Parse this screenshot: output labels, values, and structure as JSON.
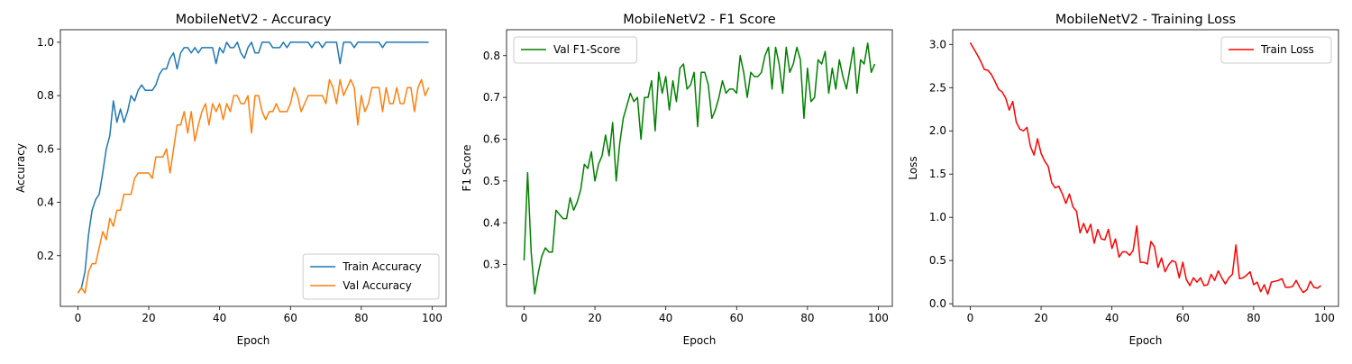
{
  "chart_data": [
    {
      "type": "line",
      "title": "MobileNetV2 - Accuracy",
      "xlabel": "Epoch",
      "ylabel": "Accuracy",
      "legend": "lower right",
      "x": [
        0,
        1,
        2,
        3,
        4,
        5,
        6,
        7,
        8,
        9,
        10,
        11,
        12,
        13,
        14,
        15,
        16,
        17,
        18,
        19,
        20,
        21,
        22,
        23,
        24,
        25,
        26,
        27,
        28,
        29,
        30,
        31,
        32,
        33,
        34,
        35,
        36,
        37,
        38,
        39,
        40,
        41,
        42,
        43,
        44,
        45,
        46,
        47,
        48,
        49,
        50,
        51,
        52,
        53,
        54,
        55,
        56,
        57,
        58,
        59,
        60,
        61,
        62,
        63,
        64,
        65,
        66,
        67,
        68,
        69,
        70,
        71,
        72,
        73,
        74,
        75,
        76,
        77,
        78,
        79,
        80,
        81,
        82,
        83,
        84,
        85,
        86,
        87,
        88,
        89,
        90,
        91,
        92,
        93,
        94,
        95,
        96,
        97,
        98,
        99
      ],
      "series": [
        {
          "name": "Train Accuracy",
          "color": "#1f77b4",
          "values": [
            0.06,
            0.08,
            0.14,
            0.28,
            0.37,
            0.41,
            0.43,
            0.51,
            0.6,
            0.65,
            0.78,
            0.7,
            0.75,
            0.7,
            0.74,
            0.8,
            0.78,
            0.82,
            0.84,
            0.82,
            0.82,
            0.82,
            0.84,
            0.88,
            0.9,
            0.9,
            0.94,
            0.96,
            0.9,
            0.96,
            0.98,
            0.98,
            0.96,
            0.98,
            0.96,
            0.98,
            0.98,
            0.98,
            0.98,
            0.92,
            0.98,
            0.96,
            1.0,
            0.98,
            0.98,
            1.0,
            0.96,
            0.94,
            0.98,
            1.0,
            0.96,
            0.96,
            1.0,
            1.0,
            1.0,
            0.98,
            0.98,
            0.98,
            1.0,
            0.98,
            1.0,
            1.0,
            1.0,
            1.0,
            1.0,
            1.0,
            0.98,
            1.0,
            1.0,
            0.98,
            1.0,
            1.0,
            1.0,
            1.0,
            0.92,
            1.0,
            1.0,
            1.0,
            0.98,
            1.0,
            1.0,
            1.0,
            1.0,
            1.0,
            1.0,
            1.0,
            0.98,
            1.0,
            1.0,
            1.0,
            1.0,
            1.0,
            1.0,
            1.0,
            1.0,
            1.0,
            1.0,
            1.0,
            1.0,
            1.0
          ]
        },
        {
          "name": "Val Accuracy",
          "color": "#ff7f0e",
          "values": [
            0.06,
            0.08,
            0.06,
            0.14,
            0.17,
            0.17,
            0.23,
            0.29,
            0.26,
            0.34,
            0.31,
            0.37,
            0.37,
            0.43,
            0.43,
            0.43,
            0.49,
            0.51,
            0.51,
            0.51,
            0.51,
            0.49,
            0.57,
            0.57,
            0.57,
            0.6,
            0.51,
            0.6,
            0.69,
            0.69,
            0.74,
            0.66,
            0.74,
            0.63,
            0.69,
            0.74,
            0.77,
            0.69,
            0.77,
            0.74,
            0.77,
            0.71,
            0.77,
            0.74,
            0.8,
            0.8,
            0.77,
            0.77,
            0.8,
            0.66,
            0.8,
            0.8,
            0.74,
            0.71,
            0.74,
            0.74,
            0.77,
            0.74,
            0.74,
            0.74,
            0.77,
            0.83,
            0.8,
            0.74,
            0.77,
            0.8,
            0.8,
            0.8,
            0.8,
            0.8,
            0.77,
            0.86,
            0.83,
            0.77,
            0.86,
            0.8,
            0.83,
            0.86,
            0.83,
            0.69,
            0.8,
            0.74,
            0.77,
            0.83,
            0.83,
            0.83,
            0.74,
            0.83,
            0.77,
            0.77,
            0.83,
            0.77,
            0.77,
            0.83,
            0.83,
            0.74,
            0.83,
            0.86,
            0.8,
            0.83
          ]
        }
      ],
      "xlim": [
        -4.95,
        103.95
      ],
      "xticks": [
        0,
        20,
        40,
        60,
        80,
        100
      ],
      "ylim": [
        0.01,
        1.047
      ],
      "yticks": [
        0.2,
        0.4,
        0.6,
        0.8,
        {
          "value": 1,
          "label": "1.0"
        }
      ]
    },
    {
      "type": "line",
      "title": "MobileNetV2 - F1 Score",
      "xlabel": "Epoch",
      "ylabel": "F1 Score",
      "legend": "upper left",
      "x": [
        0,
        1,
        2,
        3,
        4,
        5,
        6,
        7,
        8,
        9,
        10,
        11,
        12,
        13,
        14,
        15,
        16,
        17,
        18,
        19,
        20,
        21,
        22,
        23,
        24,
        25,
        26,
        27,
        28,
        29,
        30,
        31,
        32,
        33,
        34,
        35,
        36,
        37,
        38,
        39,
        40,
        41,
        42,
        43,
        44,
        45,
        46,
        47,
        48,
        49,
        50,
        51,
        52,
        53,
        54,
        55,
        56,
        57,
        58,
        59,
        60,
        61,
        62,
        63,
        64,
        65,
        66,
        67,
        68,
        69,
        70,
        71,
        72,
        73,
        74,
        75,
        76,
        77,
        78,
        79,
        80,
        81,
        82,
        83,
        84,
        85,
        86,
        87,
        88,
        89,
        90,
        91,
        92,
        93,
        94,
        95,
        96,
        97,
        98,
        99
      ],
      "series": [
        {
          "name": "Val F1-Score",
          "color": "#008000",
          "values": [
            0.31,
            0.52,
            0.33,
            0.23,
            0.28,
            0.32,
            0.34,
            0.33,
            0.33,
            0.43,
            0.42,
            0.41,
            0.41,
            0.46,
            0.43,
            0.45,
            0.48,
            0.54,
            0.53,
            0.57,
            0.5,
            0.54,
            0.56,
            0.61,
            0.56,
            0.64,
            0.5,
            0.59,
            0.65,
            0.68,
            0.71,
            0.69,
            0.7,
            0.6,
            0.7,
            0.7,
            0.74,
            0.62,
            0.76,
            0.71,
            0.75,
            0.67,
            0.74,
            0.69,
            0.77,
            0.78,
            0.72,
            0.73,
            0.76,
            0.63,
            0.76,
            0.76,
            0.73,
            0.65,
            0.67,
            0.7,
            0.74,
            0.71,
            0.72,
            0.72,
            0.71,
            0.8,
            0.76,
            0.7,
            0.76,
            0.75,
            0.75,
            0.76,
            0.8,
            0.82,
            0.72,
            0.82,
            0.78,
            0.71,
            0.82,
            0.76,
            0.78,
            0.82,
            0.79,
            0.65,
            0.77,
            0.69,
            0.7,
            0.79,
            0.78,
            0.81,
            0.71,
            0.77,
            0.72,
            0.79,
            0.75,
            0.72,
            0.77,
            0.82,
            0.71,
            0.79,
            0.78,
            0.83,
            0.76,
            0.78
          ]
        }
      ],
      "xlim": [
        -4.95,
        103.95
      ],
      "xticks": [
        0,
        20,
        40,
        60,
        80,
        100
      ],
      "ylim": [
        0.2,
        0.862
      ],
      "yticks": [
        0.3,
        0.4,
        0.5,
        0.6,
        0.7,
        0.8
      ]
    },
    {
      "type": "line",
      "title": "MobileNetV2 - Training Loss",
      "xlabel": "Epoch",
      "ylabel": "Loss",
      "legend": "upper right",
      "x": [
        0,
        1,
        2,
        3,
        4,
        5,
        6,
        7,
        8,
        9,
        10,
        11,
        12,
        13,
        14,
        15,
        16,
        17,
        18,
        19,
        20,
        21,
        22,
        23,
        24,
        25,
        26,
        27,
        28,
        29,
        30,
        31,
        32,
        33,
        34,
        35,
        36,
        37,
        38,
        39,
        40,
        41,
        42,
        43,
        44,
        45,
        46,
        47,
        48,
        49,
        50,
        51,
        52,
        53,
        54,
        55,
        56,
        57,
        58,
        59,
        60,
        61,
        62,
        63,
        64,
        65,
        66,
        67,
        68,
        69,
        70,
        71,
        72,
        73,
        74,
        75,
        76,
        77,
        78,
        79,
        80,
        81,
        82,
        83,
        84,
        85,
        86,
        87,
        88,
        89,
        90,
        91,
        92,
        93,
        94,
        95,
        96,
        97,
        98,
        99
      ],
      "series": [
        {
          "name": "Train Loss",
          "color": "#ff0000",
          "values": [
            3.02,
            2.95,
            2.88,
            2.8,
            2.71,
            2.7,
            2.65,
            2.57,
            2.48,
            2.45,
            2.38,
            2.24,
            2.34,
            2.1,
            2.02,
            2.0,
            2.04,
            1.82,
            1.72,
            1.91,
            1.74,
            1.65,
            1.59,
            1.4,
            1.34,
            1.36,
            1.27,
            1.16,
            1.27,
            1.12,
            1.07,
            0.82,
            0.93,
            0.82,
            0.92,
            0.7,
            0.86,
            0.75,
            0.74,
            0.86,
            0.64,
            0.75,
            0.54,
            0.6,
            0.6,
            0.56,
            0.62,
            0.9,
            0.48,
            0.48,
            0.46,
            0.72,
            0.66,
            0.42,
            0.53,
            0.37,
            0.45,
            0.5,
            0.48,
            0.3,
            0.48,
            0.28,
            0.21,
            0.3,
            0.25,
            0.3,
            0.21,
            0.22,
            0.34,
            0.27,
            0.38,
            0.3,
            0.23,
            0.3,
            0.34,
            0.68,
            0.29,
            0.3,
            0.33,
            0.37,
            0.22,
            0.25,
            0.14,
            0.22,
            0.11,
            0.25,
            0.26,
            0.27,
            0.29,
            0.19,
            0.19,
            0.2,
            0.27,
            0.19,
            0.13,
            0.16,
            0.26,
            0.19,
            0.18,
            0.21
          ]
        }
      ],
      "xlim": [
        -4.95,
        103.95
      ],
      "xticks": [
        0,
        20,
        40,
        60,
        80,
        100
      ],
      "ylim": [
        -0.03,
        3.17
      ],
      "yticks": [
        {
          "value": 0,
          "label": "0.0"
        },
        0.5,
        {
          "value": 1,
          "label": "1.0"
        },
        1.5,
        {
          "value": 2,
          "label": "2.0"
        },
        2.5,
        {
          "value": 3,
          "label": "3.0"
        }
      ]
    }
  ]
}
